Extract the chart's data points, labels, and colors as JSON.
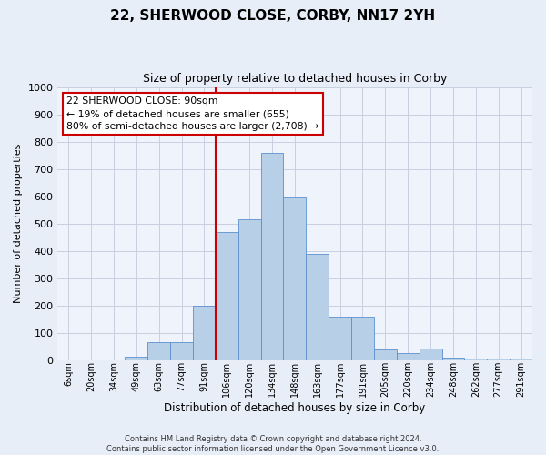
{
  "title": "22, SHERWOOD CLOSE, CORBY, NN17 2YH",
  "subtitle": "Size of property relative to detached houses in Corby",
  "xlabel": "Distribution of detached houses by size in Corby",
  "ylabel": "Number of detached properties",
  "categories": [
    "6sqm",
    "20sqm",
    "34sqm",
    "49sqm",
    "63sqm",
    "77sqm",
    "91sqm",
    "106sqm",
    "120sqm",
    "134sqm",
    "148sqm",
    "163sqm",
    "177sqm",
    "191sqm",
    "205sqm",
    "220sqm",
    "234sqm",
    "248sqm",
    "262sqm",
    "277sqm",
    "291sqm"
  ],
  "values": [
    0,
    0,
    0,
    12,
    65,
    65,
    200,
    470,
    515,
    760,
    595,
    390,
    157,
    157,
    38,
    25,
    42,
    10,
    5,
    5,
    5
  ],
  "bar_color": "#b8cfe8",
  "bar_edge_color": "#5b8fcf",
  "ylim": [
    0,
    1000
  ],
  "yticks": [
    0,
    100,
    200,
    300,
    400,
    500,
    600,
    700,
    800,
    900,
    1000
  ],
  "annotation_text": "22 SHERWOOD CLOSE: 90sqm\n← 19% of detached houses are smaller (655)\n80% of semi-detached houses are larger (2,708) →",
  "annotation_box_color": "#ffffff",
  "annotation_box_edge": "#cc0000",
  "property_line_index": 7,
  "property_line_color": "#cc0000",
  "footer_line1": "Contains HM Land Registry data © Crown copyright and database right 2024.",
  "footer_line2": "Contains public sector information licensed under the Open Government Licence v3.0.",
  "bg_color": "#e8eef8",
  "plot_bg_color": "#eef3fc",
  "grid_color": "#c8d0e0"
}
